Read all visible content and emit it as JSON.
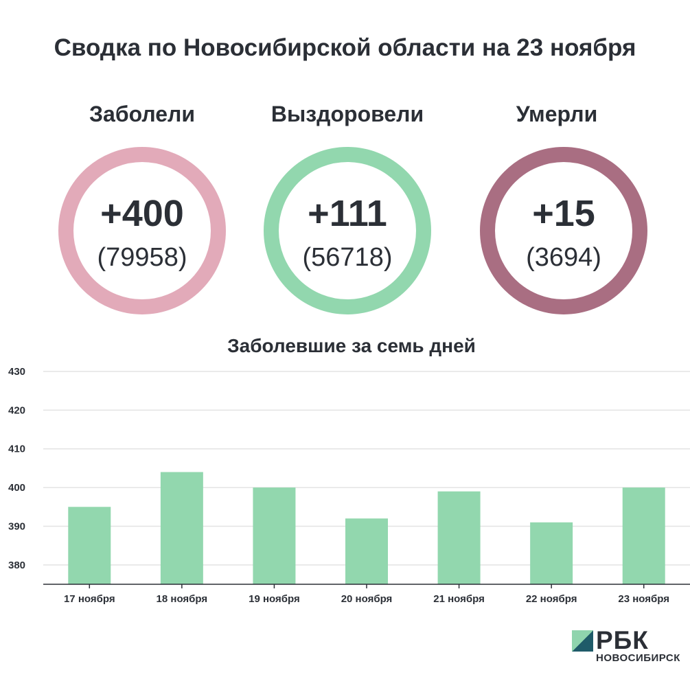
{
  "header": {
    "title": "Сводка по Новосибирской области на 23 ноября"
  },
  "stats": [
    {
      "label": "Заболели",
      "delta": "+400",
      "total": "(79958)",
      "color": "#e2aab9"
    },
    {
      "label": "Выздоровели",
      "delta": "+111",
      "total": "(56718)",
      "color": "#92d7ae"
    },
    {
      "label": "Умерли",
      "delta": "+15",
      "total": "(3694)",
      "color": "#a96e82"
    }
  ],
  "chart_data": {
    "type": "bar",
    "title": "Заболевшие за семь дней",
    "categories": [
      "17 ноября",
      "18 ноября",
      "19 ноября",
      "20 ноября",
      "21 ноября",
      "22 ноября",
      "23 ноября"
    ],
    "values": [
      395,
      404,
      400,
      392,
      399,
      391,
      400
    ],
    "ylim": [
      375,
      430
    ],
    "yticks": [
      380,
      390,
      400,
      410,
      420,
      430
    ],
    "grid": true,
    "bar_color": "#92d7ae"
  },
  "brand": {
    "name": "РБК",
    "region": "НОВОСИБИРСК"
  }
}
